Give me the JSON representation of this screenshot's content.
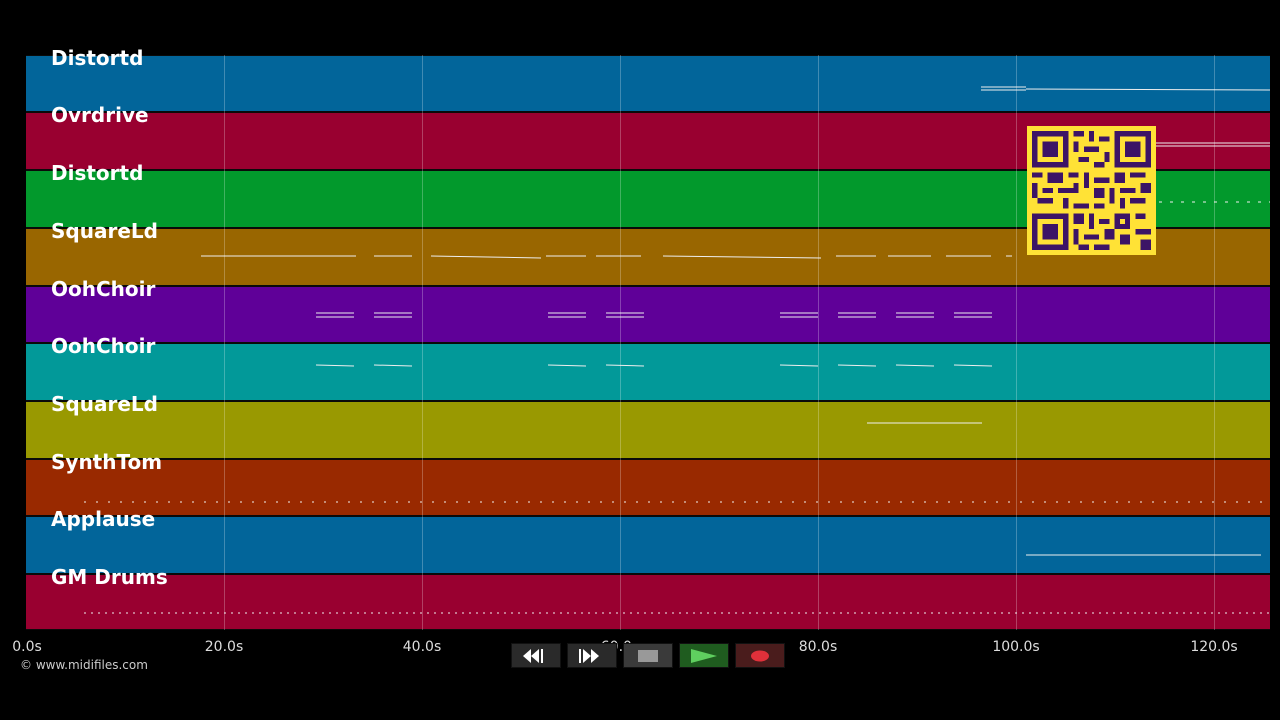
{
  "tracks": [
    {
      "name": "Distortd",
      "color": "#02659a"
    },
    {
      "name": "Ovrdrive",
      "color": "#990030"
    },
    {
      "name": "Distortd",
      "color": "#02992c"
    },
    {
      "name": "SquareLd",
      "color": "#996600"
    },
    {
      "name": "OohChoir",
      "color": "#5f0098"
    },
    {
      "name": "OohChoir",
      "color": "#029999"
    },
    {
      "name": "SquareLd",
      "color": "#999901"
    },
    {
      "name": "SynthTom",
      "color": "#992900"
    },
    {
      "name": "Applause",
      "color": "#02659a"
    },
    {
      "name": "GM Drums",
      "color": "#990030"
    }
  ],
  "timeline": {
    "ticks": [
      "0.0s",
      "20.0s",
      "40.0s",
      "60.0s",
      "80.0s",
      "100.0s",
      "120.0s"
    ]
  },
  "copyright": "© www.midifiles.com",
  "transport": {
    "buttons": [
      {
        "name": "rewind",
        "icon": "rewind-icon"
      },
      {
        "name": "fast-forward",
        "icon": "fast-forward-icon"
      },
      {
        "name": "stop",
        "icon": "stop-icon"
      },
      {
        "name": "play",
        "icon": "play-icon"
      },
      {
        "name": "record",
        "icon": "record-icon"
      }
    ]
  },
  "qr_code": "qr-code-image"
}
